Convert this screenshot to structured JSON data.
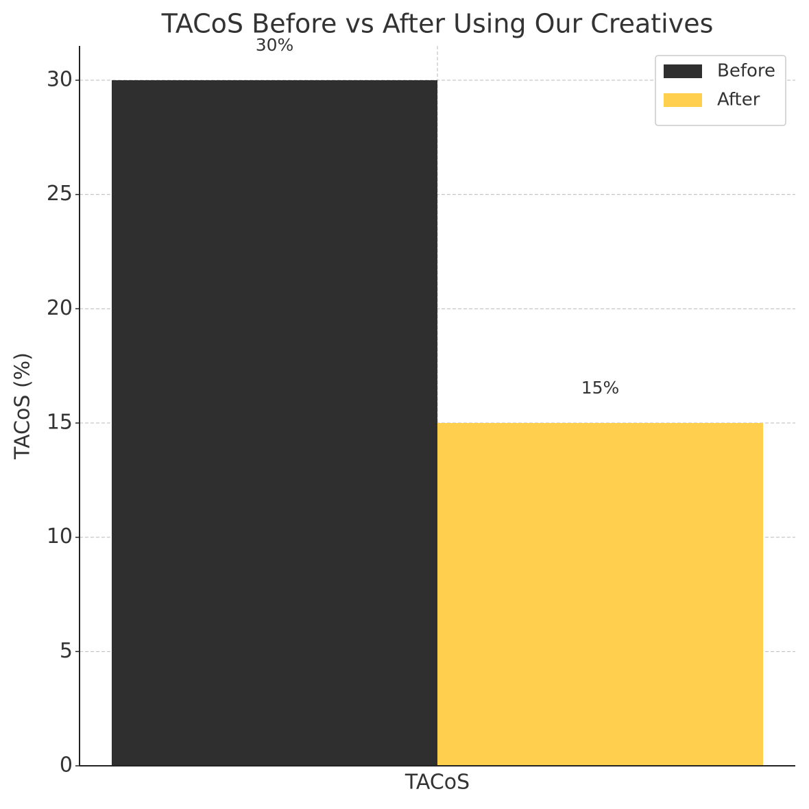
{
  "chart_data": {
    "type": "bar",
    "title": "TACoS Before vs After Using Our Creatives",
    "ylabel": "TACoS (%)",
    "categories": [
      "TACoS"
    ],
    "series": [
      {
        "name": "Before",
        "color": "#2f2f2f",
        "values": [
          30
        ],
        "value_labels": [
          "30%"
        ]
      },
      {
        "name": "After",
        "color": "#ffcf4d",
        "values": [
          15
        ],
        "value_labels": [
          "15%"
        ]
      }
    ],
    "ylim": [
      0,
      31.5
    ],
    "yticks": [
      0,
      5,
      10,
      15,
      20,
      25,
      30
    ],
    "grid": true,
    "legend": "upper right"
  }
}
